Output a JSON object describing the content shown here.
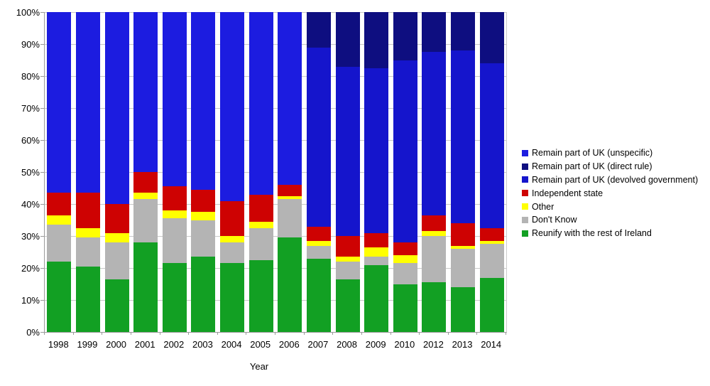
{
  "chart_data": {
    "type": "bar",
    "stacked": true,
    "title": "",
    "xlabel": "Year",
    "ylabel": "",
    "ylim": [
      0,
      100
    ],
    "grid": true,
    "y_ticks": [
      "0%",
      "10%",
      "20%",
      "30%",
      "40%",
      "50%",
      "60%",
      "70%",
      "80%",
      "90%",
      "100%"
    ],
    "categories": [
      "1998",
      "1999",
      "2000",
      "2001",
      "2002",
      "2003",
      "2004",
      "2005",
      "2006",
      "2007",
      "2008",
      "2009",
      "2010",
      "2012",
      "2013",
      "2014"
    ],
    "series": [
      {
        "name": "Reunify with the rest of Ireland",
        "color": "#12A023",
        "values": [
          22,
          20.5,
          16.5,
          28,
          21.5,
          23.5,
          21.5,
          22.5,
          29.5,
          23,
          16.5,
          21,
          15,
          15.5,
          14,
          17
        ]
      },
      {
        "name": "Don't Know",
        "color": "#B4B4B4",
        "values": [
          11.5,
          9,
          11.5,
          13.5,
          14,
          11.5,
          6.5,
          10,
          12,
          4,
          5.5,
          2.5,
          6.5,
          14.5,
          12,
          10.5
        ]
      },
      {
        "name": "Other",
        "color": "#FFFF00",
        "values": [
          3,
          3,
          3,
          2,
          2.5,
          2.5,
          2,
          2,
          1,
          1.5,
          1.5,
          3,
          2.5,
          1.5,
          1,
          1
        ]
      },
      {
        "name": "Independent state",
        "color": "#CE0202",
        "values": [
          7,
          11,
          9,
          6.5,
          7.5,
          7,
          11,
          8.5,
          3.5,
          4.5,
          6.5,
          4.5,
          4,
          5,
          7,
          4
        ]
      },
      {
        "name": "Remain part of UK (unspecific)",
        "color": "#1C1CE0",
        "values": [
          56.5,
          56.5,
          60,
          50,
          54.5,
          55.5,
          59,
          57,
          54,
          0,
          0,
          0,
          0,
          0,
          0,
          0
        ]
      },
      {
        "name": "Remain part of UK (devolved government)",
        "color": "#1515CC",
        "values": [
          0,
          0,
          0,
          0,
          0,
          0,
          0,
          0,
          0,
          56,
          53,
          51.5,
          57,
          51,
          54,
          51.5
        ]
      },
      {
        "name": "Remain part of UK (direct rule)",
        "color": "#0E0E80",
        "values": [
          0,
          0,
          0,
          0,
          0,
          0,
          0,
          0,
          0,
          11,
          17,
          17.5,
          15,
          12.5,
          12,
          16
        ]
      }
    ],
    "legend": {
      "position": "right",
      "entries": [
        {
          "label": "Remain part of UK (unspecific)",
          "color": "#1C1CE0"
        },
        {
          "label": "Remain part of UK (direct rule)",
          "color": "#0E0E80"
        },
        {
          "label": "Remain part of UK (devolved government)",
          "color": "#1515CC"
        },
        {
          "label": "Independent state",
          "color": "#CE0202"
        },
        {
          "label": "Other",
          "color": "#FFFF00"
        },
        {
          "label": "Don't Know",
          "color": "#B4B4B4"
        },
        {
          "label": "Reunify with the rest of Ireland",
          "color": "#12A023"
        }
      ]
    }
  }
}
